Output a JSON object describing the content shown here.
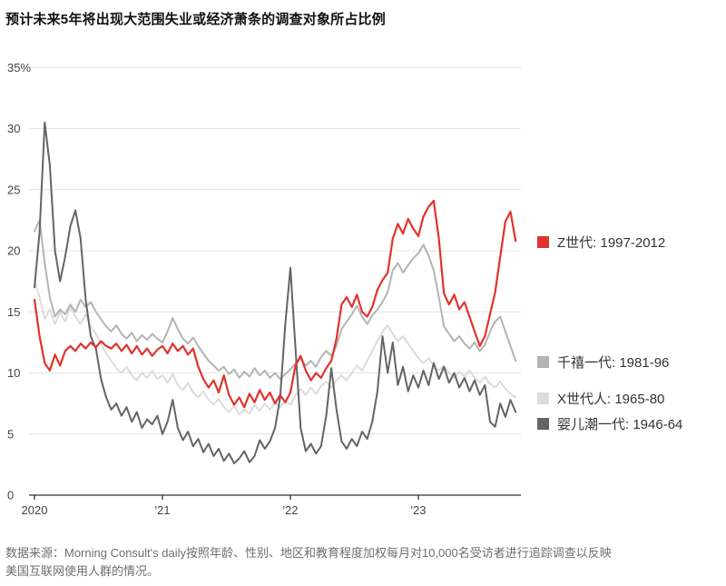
{
  "title": "预计未来5年将出现大范围失业或经济萧条的调查对象所占比例",
  "legend": [
    {
      "id": "gen-z",
      "label": "Z世代: 1997-2012",
      "color": "#e0332c"
    },
    {
      "id": "millennials",
      "label": "千禧一代: 1981-96",
      "color": "#b4b4b4"
    },
    {
      "id": "gen-x",
      "label": "X世代人: 1965-80",
      "color": "#dcdcdc"
    },
    {
      "id": "boomers",
      "label": "婴儿潮一代: 1946-64",
      "color": "#646464"
    }
  ],
  "footer": {
    "source": "数据来源：Morning Consult's daily按照年龄、性别、地区和教育程度加权每月对10,000名受访者进行追踪调查以反映美国互联网使用人群的情况。"
  },
  "chart_data": {
    "type": "line",
    "title": "预计未来5年将出现大范围失业或经济萧条的调查对象所占比例",
    "xlabel": "",
    "ylabel": "",
    "ylim": [
      0,
      35
    ],
    "xlim": [
      2019.95,
      2023.85
    ],
    "grid": true,
    "legend_position": "right",
    "y_ticks": [
      0,
      5,
      10,
      15,
      20,
      25,
      30,
      35
    ],
    "y_tick_labels": [
      "0",
      "5",
      "10",
      "15",
      "20",
      "25",
      "30",
      "35%"
    ],
    "x_ticks": [
      {
        "v": 2020,
        "label": "2020"
      },
      {
        "v": 2021,
        "label": "'21"
      },
      {
        "v": 2022,
        "label": "'22"
      },
      {
        "v": 2023,
        "label": "'23"
      }
    ],
    "x_start": 2020.0,
    "x_step": 0.04,
    "series": [
      {
        "name": "X世代人: 1965-80",
        "color": "#dcdcdc",
        "width": 2,
        "values": [
          17.6,
          16.2,
          14.4,
          15.2,
          14.0,
          15.0,
          14.2,
          15.4,
          14.6,
          14.0,
          14.8,
          13.8,
          13.2,
          12.4,
          11.6,
          11.0,
          10.4,
          10.0,
          10.5,
          9.8,
          9.4,
          10.0,
          9.6,
          10.2,
          9.5,
          9.8,
          9.2,
          9.9,
          9.0,
          8.6,
          9.2,
          8.4,
          8.0,
          8.5,
          7.8,
          7.4,
          7.9,
          7.2,
          6.8,
          7.3,
          6.6,
          7.0,
          6.7,
          7.4,
          6.9,
          7.5,
          7.0,
          7.6,
          7.2,
          7.7,
          7.4,
          8.2,
          8.7,
          8.2,
          8.8,
          8.3,
          8.9,
          9.3,
          8.8,
          9.4,
          9.8,
          9.4,
          10.0,
          10.6,
          10.2,
          11.0,
          11.8,
          12.6,
          13.4,
          13.9,
          13.2,
          12.6,
          13.0,
          12.4,
          11.8,
          11.2,
          10.8,
          11.2,
          10.6,
          10.2,
          10.6,
          10.0,
          9.6,
          10.1,
          9.7,
          10.2,
          9.6,
          9.2,
          9.7,
          9.1,
          8.8,
          9.3,
          8.7,
          8.3,
          8.0
        ]
      },
      {
        "name": "千禧一代: 1981-96",
        "color": "#b4b4b4",
        "width": 2,
        "values": [
          21.6,
          22.5,
          19.0,
          16.2,
          14.6,
          15.2,
          14.8,
          15.6,
          15.0,
          16.0,
          15.4,
          15.8,
          15.0,
          14.4,
          13.8,
          13.4,
          13.9,
          13.2,
          12.8,
          13.3,
          12.6,
          13.1,
          12.7,
          13.2,
          12.8,
          12.5,
          13.4,
          14.5,
          13.6,
          12.8,
          12.4,
          12.9,
          12.2,
          11.6,
          11.0,
          10.6,
          10.2,
          10.5,
          9.9,
          10.3,
          9.6,
          10.1,
          9.7,
          10.4,
          9.8,
          10.2,
          9.6,
          10.0,
          9.5,
          9.9,
          10.3,
          10.8,
          11.2,
          10.6,
          11.0,
          10.5,
          11.3,
          11.8,
          11.4,
          12.2,
          13.6,
          14.2,
          14.8,
          15.5,
          14.6,
          14.0,
          14.7,
          15.2,
          15.8,
          16.6,
          18.4,
          19.0,
          18.2,
          18.8,
          19.4,
          19.8,
          20.5,
          19.6,
          18.4,
          16.2,
          13.8,
          13.2,
          12.6,
          13.0,
          12.4,
          12.0,
          12.5,
          11.8,
          12.3,
          13.4,
          14.2,
          14.6,
          13.4,
          12.2,
          11.0
        ]
      },
      {
        "name": "婴儿潮一代: 1946-64",
        "color": "#646464",
        "width": 2,
        "values": [
          17.0,
          21.5,
          30.5,
          27.0,
          20.0,
          17.5,
          19.5,
          22.0,
          23.3,
          21.0,
          16.0,
          13.0,
          12.0,
          9.5,
          8.0,
          7.0,
          7.5,
          6.5,
          7.2,
          6.0,
          6.8,
          5.5,
          6.2,
          5.8,
          6.5,
          5.0,
          6.0,
          7.8,
          5.5,
          4.5,
          5.2,
          4.0,
          4.6,
          3.5,
          4.2,
          3.2,
          3.8,
          2.8,
          3.4,
          2.6,
          3.0,
          3.6,
          2.7,
          3.2,
          4.5,
          3.8,
          4.4,
          5.5,
          8.0,
          14.0,
          18.6,
          12.0,
          5.5,
          3.6,
          4.2,
          3.4,
          4.0,
          6.5,
          10.4,
          7.0,
          4.4,
          3.8,
          4.6,
          4.0,
          5.2,
          4.6,
          6.0,
          8.5,
          13.0,
          10.0,
          12.5,
          9.0,
          10.5,
          8.5,
          9.8,
          8.8,
          10.2,
          9.0,
          10.8,
          9.5,
          10.5,
          9.2,
          10.0,
          8.8,
          9.6,
          8.5,
          9.4,
          8.2,
          9.0,
          6.0,
          5.6,
          7.5,
          6.4,
          7.8,
          6.8
        ]
      },
      {
        "name": "Z世代: 1997-2012",
        "color": "#e0332c",
        "width": 2.2,
        "values": [
          16.0,
          13.0,
          10.8,
          10.2,
          11.5,
          10.6,
          11.8,
          12.2,
          11.8,
          12.4,
          12.0,
          12.5,
          12.1,
          12.6,
          12.2,
          12.0,
          12.4,
          11.8,
          12.3,
          11.6,
          12.2,
          11.5,
          12.0,
          11.4,
          11.9,
          12.2,
          11.6,
          12.4,
          11.8,
          12.2,
          11.5,
          12.0,
          10.5,
          9.5,
          8.8,
          9.4,
          8.4,
          9.8,
          8.2,
          7.4,
          8.0,
          7.2,
          8.3,
          7.6,
          8.6,
          7.8,
          8.4,
          7.5,
          8.2,
          7.6,
          8.4,
          10.6,
          11.4,
          10.2,
          9.4,
          10.0,
          9.6,
          10.4,
          11.0,
          12.8,
          15.6,
          16.2,
          15.4,
          16.4,
          15.0,
          14.6,
          15.4,
          16.8,
          17.6,
          18.2,
          21.0,
          22.2,
          21.4,
          22.6,
          21.8,
          21.2,
          22.8,
          23.6,
          24.1,
          21.0,
          16.5,
          15.6,
          16.4,
          15.2,
          15.8,
          14.6,
          13.4,
          12.2,
          13.0,
          14.8,
          16.6,
          19.5,
          22.4,
          23.2,
          20.8
        ]
      }
    ]
  }
}
